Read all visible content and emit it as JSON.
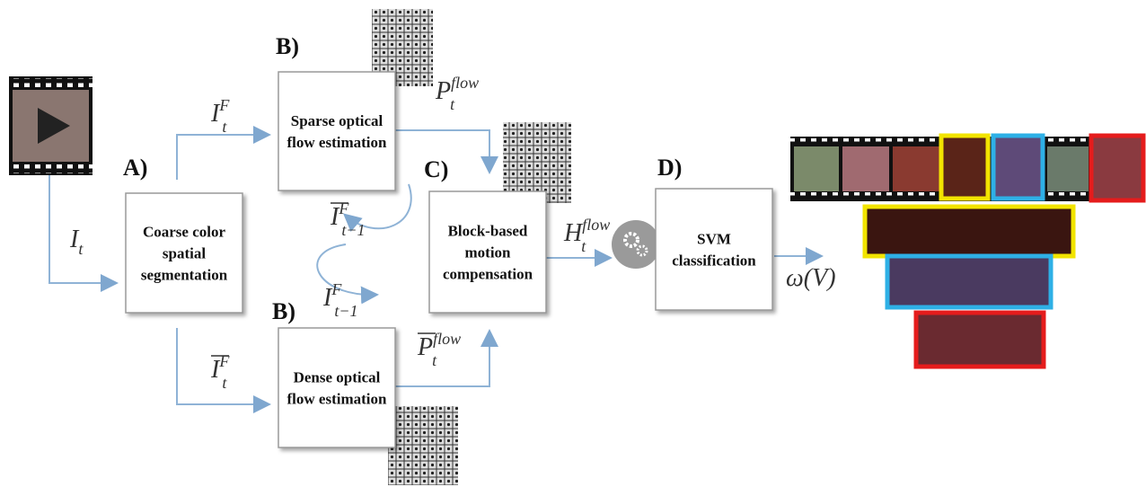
{
  "steps": [
    {
      "tag": "A)",
      "lines": [
        "Coarse color",
        "spatial",
        "segmentation"
      ]
    },
    {
      "tag": "B)",
      "lines": [
        "Sparse optical",
        "flow estimation"
      ]
    },
    {
      "tag": "B)",
      "lines": [
        "Dense optical",
        "flow estimation"
      ]
    },
    {
      "tag": "C)",
      "lines": [
        "Block-based",
        "motion",
        "compensation"
      ]
    },
    {
      "tag": "D)",
      "lines": [
        "SVM",
        "classification"
      ]
    }
  ],
  "symbols": [
    {
      "base": "I",
      "sub": "t"
    },
    {
      "base": "I",
      "sup": "F",
      "sub": "t"
    },
    {
      "base": "I",
      "sup": "F",
      "sub": "t",
      "bar": true
    },
    {
      "base": "P",
      "sup": "flow",
      "sub": "t"
    },
    {
      "base": "P",
      "sup": "flow",
      "sub": "t",
      "bar": true
    },
    {
      "base": "I",
      "sup": "F",
      "sub": "t−1",
      "bar": true
    },
    {
      "base": "I",
      "sup": "F",
      "sub": "t−1"
    },
    {
      "base": "H",
      "sup": "flow",
      "sub": "t"
    },
    {
      "base": "ω(V)"
    }
  ]
}
